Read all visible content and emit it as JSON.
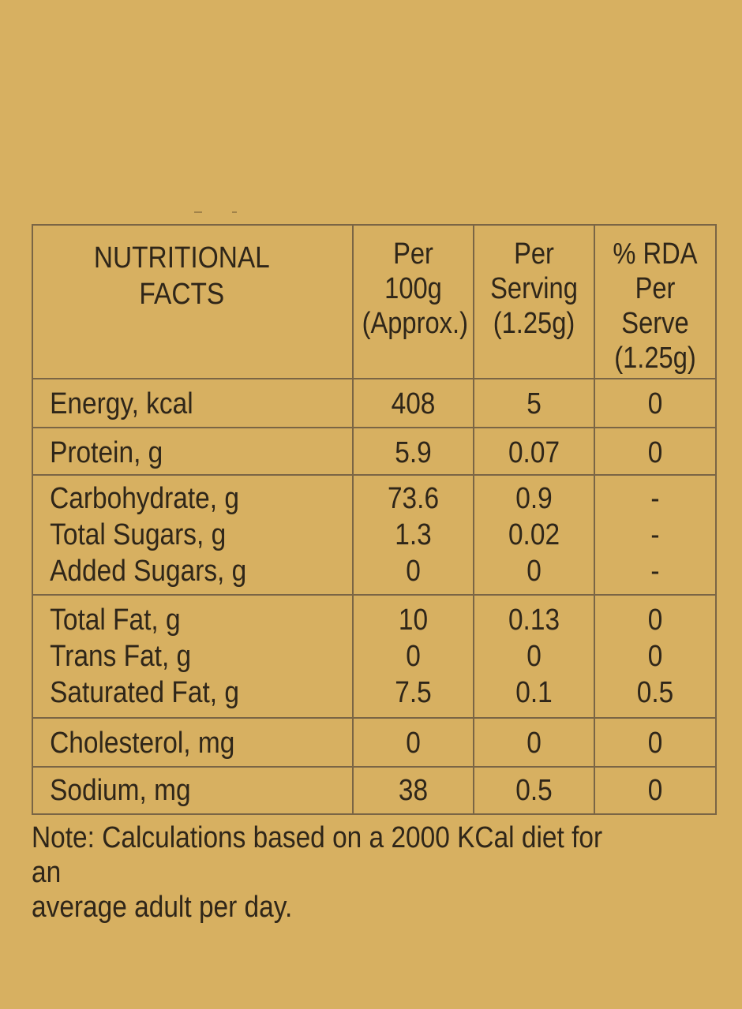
{
  "colors": {
    "background": "#d7b061",
    "text": "#2f2619",
    "border": "#7a6545"
  },
  "table": {
    "header": {
      "label": "NUTRITIONAL\nFACTS",
      "per_100g": "Per\n100g\n(Approx.)",
      "per_serving": "Per\nServing\n(1.25g)",
      "rda": "% RDA\nPer\nServe\n(1.25g)"
    },
    "groups": [
      {
        "names": [
          "Energy, kcal"
        ],
        "per_100g": [
          "408"
        ],
        "per_serving": [
          "5"
        ],
        "rda": [
          "0"
        ]
      },
      {
        "names": [
          "Protein, g"
        ],
        "per_100g": [
          "5.9"
        ],
        "per_serving": [
          "0.07"
        ],
        "rda": [
          "0"
        ]
      },
      {
        "names": [
          "Carbohydrate, g",
          "Total Sugars, g",
          "Added Sugars, g"
        ],
        "per_100g": [
          "73.6",
          "1.3",
          "0"
        ],
        "per_serving": [
          "0.9",
          "0.02",
          "0"
        ],
        "rda": [
          "-",
          "-",
          "-"
        ]
      },
      {
        "names": [
          "Total Fat, g",
          "Trans Fat, g",
          "Saturated Fat, g"
        ],
        "per_100g": [
          "10",
          "0",
          "7.5"
        ],
        "per_serving": [
          "0.13",
          "0",
          "0.1"
        ],
        "rda": [
          "0",
          "0",
          "0.5"
        ]
      },
      {
        "names": [
          "Cholesterol, mg"
        ],
        "per_100g": [
          "0"
        ],
        "per_serving": [
          "0"
        ],
        "rda": [
          "0"
        ]
      },
      {
        "names": [
          "Sodium, mg"
        ],
        "per_100g": [
          "38"
        ],
        "per_serving": [
          "0.5"
        ],
        "rda": [
          "0"
        ]
      }
    ]
  },
  "note": "Note: Calculations based on a 2000 KCal diet for an\naverage adult per day."
}
